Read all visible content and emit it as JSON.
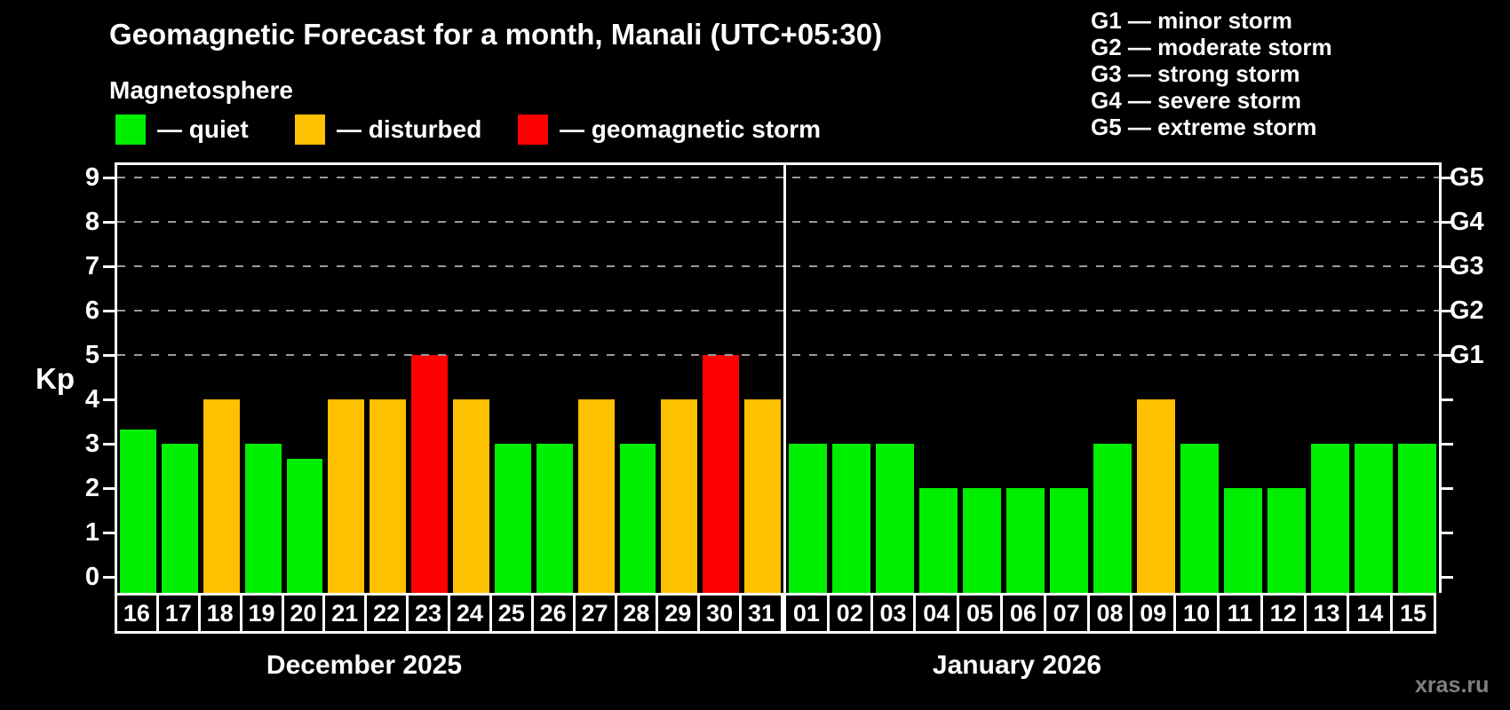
{
  "header": {
    "title": "Geomagnetic Forecast for a month, Manali (UTC+05:30)",
    "subtitle": "Magnetosphere"
  },
  "legend": {
    "items": [
      {
        "level": "quiet",
        "label": "— quiet"
      },
      {
        "level": "disturbed",
        "label": "— disturbed"
      },
      {
        "level": "storm",
        "label": "— geomagnetic storm"
      }
    ]
  },
  "storm_scale": {
    "lines": [
      "G1 — minor storm",
      "G2 — moderate storm",
      "G3 — strong storm",
      "G4 — severe storm",
      "G5 — extreme storm"
    ]
  },
  "colors": {
    "quiet": "#00ee00",
    "disturbed": "#ffc000",
    "storm": "#ff0000",
    "grid": "#9a9a9a",
    "axis": "#ffffff",
    "background": "#000000",
    "text": "#ffffff",
    "watermark": "#808080"
  },
  "watermark": "xras.ru",
  "chart_data": {
    "type": "bar",
    "title": "Geomagnetic Forecast for a month, Manali (UTC+05:30)",
    "subtitle": "Magnetosphere",
    "ylabel": "Kp",
    "ylim": [
      0,
      9.6
    ],
    "y_ticks": [
      0,
      1,
      2,
      3,
      4,
      5,
      6,
      7,
      8,
      9
    ],
    "grid_levels": [
      5,
      6,
      7,
      8,
      9
    ],
    "grid_style": "dashed",
    "legend_position": "top-left",
    "right_axis": [
      {
        "kp": 5,
        "label": "G1"
      },
      {
        "kp": 6,
        "label": "G2"
      },
      {
        "kp": 7,
        "label": "G3"
      },
      {
        "kp": 8,
        "label": "G4"
      },
      {
        "kp": 9,
        "label": "G5"
      }
    ],
    "groups": [
      {
        "label": "December 2025",
        "categories": [
          "16",
          "17",
          "18",
          "19",
          "20",
          "21",
          "22",
          "23",
          "24",
          "25",
          "26",
          "27",
          "28",
          "29",
          "30",
          "31"
        ],
        "values": [
          3.33,
          3,
          4,
          3,
          2.67,
          4,
          4,
          5,
          4,
          3,
          3,
          4,
          3,
          4,
          5,
          4
        ],
        "levels": [
          "quiet",
          "quiet",
          "disturbed",
          "quiet",
          "quiet",
          "disturbed",
          "disturbed",
          "storm",
          "disturbed",
          "quiet",
          "quiet",
          "disturbed",
          "quiet",
          "disturbed",
          "storm",
          "disturbed"
        ]
      },
      {
        "label": "January 2026",
        "categories": [
          "01",
          "02",
          "03",
          "04",
          "05",
          "06",
          "07",
          "08",
          "09",
          "10",
          "11",
          "12",
          "13",
          "14",
          "15"
        ],
        "values": [
          3,
          3,
          3,
          2,
          2,
          2,
          2,
          3,
          4,
          3,
          2,
          2,
          3,
          3,
          3
        ],
        "levels": [
          "quiet",
          "quiet",
          "quiet",
          "quiet",
          "quiet",
          "quiet",
          "quiet",
          "quiet",
          "disturbed",
          "quiet",
          "quiet",
          "quiet",
          "quiet",
          "quiet",
          "quiet"
        ]
      }
    ]
  }
}
